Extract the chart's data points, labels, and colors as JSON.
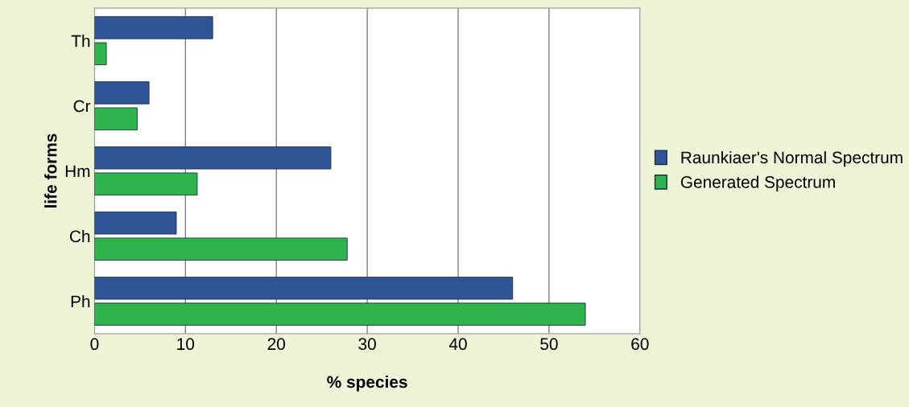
{
  "chart_data": {
    "type": "bar",
    "orientation": "horizontal",
    "xlabel": "% species",
    "ylabel": "life forms",
    "categories": [
      "Th",
      "Cr",
      "Hm",
      "Ch",
      "Ph"
    ],
    "series": [
      {
        "name": "Raunkiaer's Normal Spectrum",
        "color": "#2f5597",
        "values": [
          13,
          6,
          26,
          9,
          46
        ]
      },
      {
        "name": "Generated Spectrum",
        "color": "#2fb34c",
        "values": [
          1.3,
          4.7,
          11.3,
          27.8,
          54
        ]
      }
    ],
    "xlim": [
      0,
      60
    ],
    "xticks": [
      0,
      10,
      20,
      30,
      40,
      50,
      60
    ],
    "grid": "x",
    "legend": "right"
  }
}
